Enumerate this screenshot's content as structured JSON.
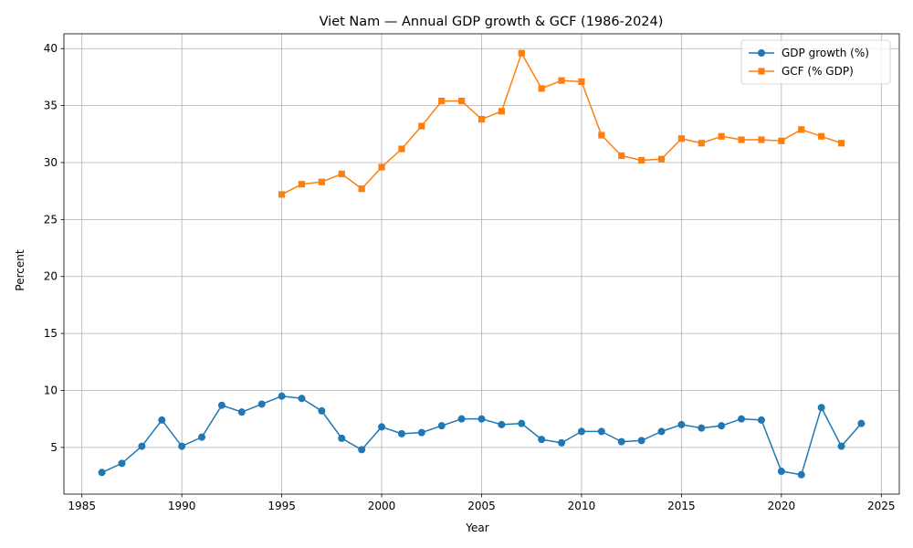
{
  "chart_data": {
    "type": "line",
    "title": "Viet Nam — Annual GDP growth & GCF (1986-2024)",
    "xlabel": "Year",
    "ylabel": "Percent",
    "xlim": [
      1984.1,
      2025.9
    ],
    "ylim": [
      0.9,
      41.3
    ],
    "xticks": [
      1985,
      1990,
      1995,
      2000,
      2005,
      2010,
      2015,
      2020,
      2025
    ],
    "yticks": [
      5,
      10,
      15,
      20,
      25,
      30,
      35,
      40
    ],
    "grid": true,
    "legend_position": "top-right",
    "series": [
      {
        "name": "GDP growth (%)",
        "color": "#1f77b4",
        "marker": "circle",
        "x": [
          1986,
          1987,
          1988,
          1989,
          1990,
          1991,
          1992,
          1993,
          1994,
          1995,
          1996,
          1997,
          1998,
          1999,
          2000,
          2001,
          2002,
          2003,
          2004,
          2005,
          2006,
          2007,
          2008,
          2009,
          2010,
          2011,
          2012,
          2013,
          2014,
          2015,
          2016,
          2017,
          2018,
          2019,
          2020,
          2021,
          2022,
          2023,
          2024
        ],
        "y": [
          2.8,
          3.6,
          5.1,
          7.4,
          5.1,
          5.9,
          8.7,
          8.1,
          8.8,
          9.5,
          9.3,
          8.2,
          5.8,
          4.8,
          6.8,
          6.2,
          6.3,
          6.9,
          7.5,
          7.5,
          7.0,
          7.1,
          5.7,
          5.4,
          6.4,
          6.4,
          5.5,
          5.6,
          6.4,
          7.0,
          6.7,
          6.9,
          7.5,
          7.4,
          2.9,
          2.6,
          8.5,
          5.1,
          7.1
        ]
      },
      {
        "name": "GCF (% GDP)",
        "color": "#ff7f0e",
        "marker": "square",
        "x": [
          1995,
          1996,
          1997,
          1998,
          1999,
          2000,
          2001,
          2002,
          2003,
          2004,
          2005,
          2006,
          2007,
          2008,
          2009,
          2010,
          2011,
          2012,
          2013,
          2014,
          2015,
          2016,
          2017,
          2018,
          2019,
          2020,
          2021,
          2022,
          2023
        ],
        "y": [
          27.2,
          28.1,
          28.3,
          29.0,
          27.7,
          29.6,
          31.2,
          33.2,
          35.4,
          35.4,
          33.8,
          34.5,
          39.6,
          36.5,
          37.2,
          37.1,
          32.4,
          30.6,
          30.2,
          30.3,
          32.1,
          31.7,
          32.3,
          32.0,
          32.0,
          31.9,
          32.9,
          32.3,
          31.7
        ]
      }
    ]
  }
}
